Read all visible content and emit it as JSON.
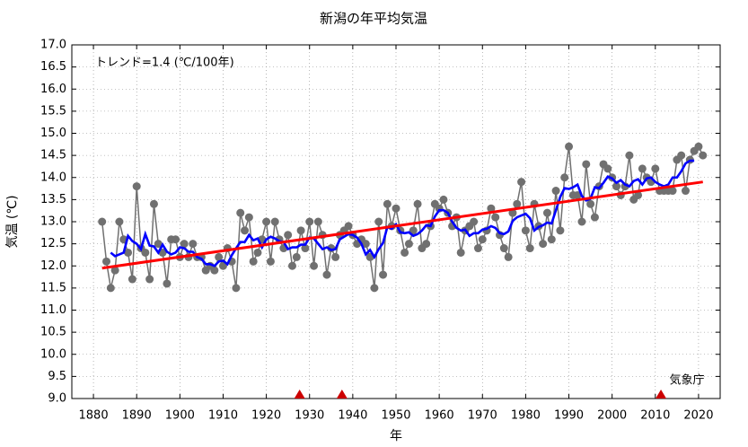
{
  "chart_data": {
    "type": "line",
    "title": "新潟の年平均気温",
    "xlabel": "年",
    "ylabel": "気温 (℃)",
    "annotation": "トレンド=1.4 (℃/100年)",
    "source": "気象庁",
    "xlim": [
      1875,
      2025
    ],
    "ylim": [
      9,
      17
    ],
    "xticks": [
      1880,
      1890,
      1900,
      1910,
      1920,
      1930,
      1940,
      1950,
      1960,
      1970,
      1980,
      1990,
      2000,
      2010,
      2020
    ],
    "yticks": [
      {
        "value": 9,
        "label": "9.0"
      },
      9.5,
      {
        "value": 10,
        "label": "10.0"
      },
      10.5,
      {
        "value": 11,
        "label": "11.0"
      },
      11.5,
      {
        "value": 12,
        "label": "12.0"
      },
      12.5,
      {
        "value": 13,
        "label": "13.0"
      },
      13.5,
      {
        "value": 14,
        "label": "14.0"
      },
      14.5,
      {
        "value": 15,
        "label": "15.0"
      },
      15.5,
      {
        "value": 16,
        "label": "16.0"
      },
      16.5,
      {
        "value": 17,
        "label": "17.0"
      }
    ],
    "grid": true,
    "x": [
      1882,
      1883,
      1884,
      1885,
      1886,
      1887,
      1888,
      1889,
      1890,
      1891,
      1892,
      1893,
      1894,
      1895,
      1896,
      1897,
      1898,
      1899,
      1900,
      1901,
      1902,
      1903,
      1904,
      1905,
      1906,
      1907,
      1908,
      1909,
      1910,
      1911,
      1912,
      1913,
      1914,
      1915,
      1916,
      1917,
      1918,
      1919,
      1920,
      1921,
      1922,
      1923,
      1924,
      1925,
      1926,
      1927,
      1928,
      1929,
      1930,
      1931,
      1932,
      1933,
      1934,
      1935,
      1936,
      1937,
      1938,
      1939,
      1940,
      1941,
      1942,
      1943,
      1944,
      1945,
      1946,
      1947,
      1948,
      1949,
      1950,
      1951,
      1952,
      1953,
      1954,
      1955,
      1956,
      1957,
      1958,
      1959,
      1960,
      1961,
      1962,
      1963,
      1964,
      1965,
      1966,
      1967,
      1968,
      1969,
      1970,
      1971,
      1972,
      1973,
      1974,
      1975,
      1976,
      1977,
      1978,
      1979,
      1980,
      1981,
      1982,
      1983,
      1984,
      1985,
      1986,
      1987,
      1988,
      1989,
      1990,
      1991,
      1992,
      1993,
      1994,
      1995,
      1996,
      1997,
      1998,
      1999,
      2000,
      2001,
      2002,
      2003,
      2004,
      2005,
      2006,
      2007,
      2008,
      2009,
      2010,
      2011,
      2012,
      2013,
      2014,
      2015,
      2016,
      2017,
      2018,
      2019,
      2020,
      2021
    ],
    "annual": {
      "color": "#707070",
      "values": [
        13.0,
        12.1,
        11.5,
        11.9,
        13.0,
        12.6,
        12.3,
        11.7,
        13.8,
        12.4,
        12.3,
        11.7,
        13.4,
        12.5,
        12.3,
        11.6,
        12.6,
        12.6,
        12.2,
        12.5,
        12.2,
        12.5,
        12.2,
        12.2,
        11.9,
        12.0,
        11.9,
        12.2,
        12.0,
        12.4,
        12.1,
        11.5,
        13.2,
        12.8,
        13.1,
        12.1,
        12.3,
        12.6,
        13.0,
        12.1,
        13.0,
        12.6,
        12.4,
        12.7,
        12.0,
        12.2,
        12.8,
        12.4,
        13.0,
        12.0,
        13.0,
        12.7,
        11.8,
        12.4,
        12.2,
        12.7,
        12.8,
        12.9,
        12.7,
        12.5,
        12.6,
        12.5,
        12.2,
        11.5,
        13.0,
        11.8,
        13.4,
        12.9,
        13.3,
        12.8,
        12.3,
        12.5,
        12.8,
        13.4,
        12.4,
        12.5,
        12.9,
        13.4,
        13.3,
        13.5,
        13.2,
        12.9,
        13.1,
        12.3,
        12.8,
        12.9,
        13.0,
        12.4,
        12.6,
        12.8,
        13.3,
        13.1,
        12.7,
        12.4,
        12.2,
        13.2,
        13.4,
        13.9,
        12.8,
        12.4,
        13.4,
        12.9,
        12.5,
        13.2,
        12.6,
        13.7,
        12.8,
        14.0,
        14.7,
        13.6,
        13.6,
        13.0,
        14.3,
        13.4,
        13.1,
        13.8,
        14.3,
        14.2,
        14.0,
        13.8,
        13.6,
        13.8,
        14.5,
        13.5,
        13.6,
        14.2,
        14.0,
        13.9,
        14.2,
        13.7,
        13.7,
        13.7,
        13.7,
        14.4,
        14.5,
        13.7,
        14.4,
        14.6,
        14.7,
        14.5
      ]
    },
    "running_mean": {
      "color": "#0000ff",
      "values": [
        null,
        null,
        12.3,
        12.22,
        12.26,
        12.3,
        12.68,
        12.56,
        12.5,
        12.38,
        12.72,
        12.46,
        12.44,
        12.3,
        12.48,
        12.32,
        12.26,
        12.3,
        12.42,
        12.4,
        12.32,
        12.32,
        12.2,
        12.16,
        12.04,
        12.04,
        12.0,
        12.1,
        12.12,
        12.04,
        12.24,
        12.4,
        12.54,
        12.54,
        12.7,
        12.58,
        12.62,
        12.42,
        12.6,
        12.66,
        12.62,
        12.56,
        12.54,
        12.38,
        12.42,
        12.42,
        12.48,
        12.48,
        12.64,
        12.62,
        12.5,
        12.38,
        12.42,
        12.36,
        12.38,
        12.6,
        12.66,
        12.72,
        12.7,
        12.64,
        12.5,
        12.26,
        12.36,
        12.2,
        12.38,
        12.52,
        12.88,
        12.84,
        12.94,
        12.76,
        12.74,
        12.76,
        12.68,
        12.72,
        12.8,
        12.92,
        12.9,
        13.12,
        13.26,
        13.26,
        13.2,
        13.0,
        12.86,
        12.8,
        12.82,
        12.68,
        12.74,
        12.74,
        12.82,
        12.84,
        12.9,
        12.86,
        12.74,
        12.72,
        12.78,
        13.02,
        13.1,
        13.14,
        13.18,
        13.08,
        12.8,
        12.88,
        12.92,
        12.98,
        12.96,
        13.26,
        13.56,
        13.76,
        13.74,
        13.78,
        13.84,
        13.58,
        13.48,
        13.52,
        13.78,
        13.76,
        13.88,
        14.02,
        13.98,
        13.88,
        13.94,
        13.84,
        13.8,
        13.92,
        13.96,
        13.84,
        13.98,
        14.0,
        13.9,
        13.84,
        13.8,
        13.84,
        14.0,
        14.0,
        14.14,
        14.32,
        14.38,
        14.38,
        null,
        null
      ]
    },
    "trend": {
      "color": "#ff0000",
      "x": [
        1882,
        2021
      ],
      "values": [
        11.95,
        13.9
      ]
    },
    "markers": {
      "color": "#cc0000",
      "x": [
        1927.7,
        1937.5,
        2011.3
      ]
    }
  }
}
